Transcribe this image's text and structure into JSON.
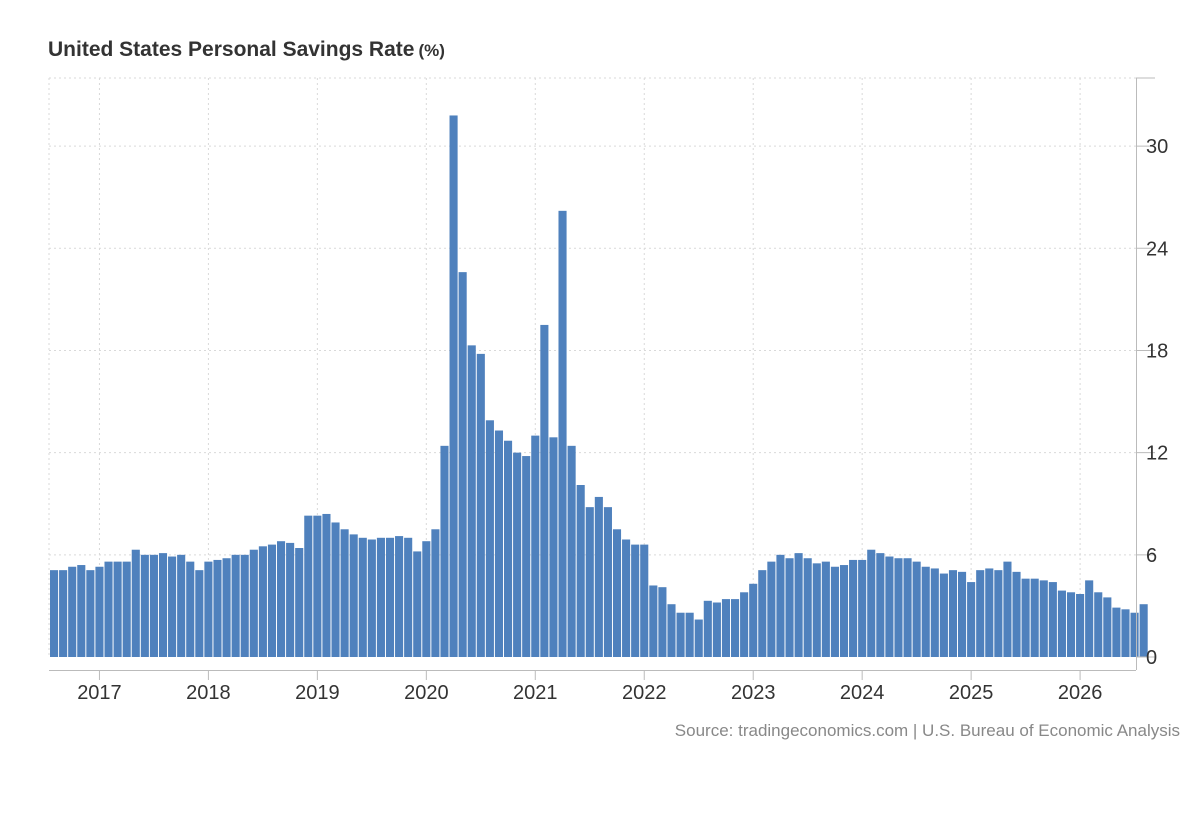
{
  "chart_data": {
    "type": "bar",
    "title": "United States Personal Savings Rate",
    "unit": "(%)",
    "source": "Source: tradingeconomics.com | U.S. Bureau of Economic Analysis",
    "xlabel": "",
    "ylabel": "",
    "start_month": "2016-08",
    "x_ticks": [
      "2017",
      "2018",
      "2019",
      "2020",
      "2021",
      "2022",
      "2023",
      "2024",
      "2025",
      "2026"
    ],
    "y_ticks": [
      0,
      6,
      12,
      18,
      24,
      30
    ],
    "ylim": [
      0,
      34
    ],
    "grid": true,
    "series_color": "#4f81bd",
    "values": [
      5.1,
      5.1,
      5.3,
      5.4,
      5.1,
      5.3,
      5.6,
      5.6,
      5.6,
      6.3,
      6.0,
      6.0,
      6.1,
      5.9,
      6.0,
      5.6,
      5.1,
      5.6,
      5.7,
      5.8,
      6.0,
      6.0,
      6.3,
      6.5,
      6.6,
      6.8,
      6.7,
      6.4,
      8.3,
      8.3,
      8.4,
      7.9,
      7.5,
      7.2,
      7.0,
      6.9,
      7.0,
      7.0,
      7.1,
      7.0,
      6.2,
      6.8,
      7.5,
      12.4,
      31.8,
      22.6,
      18.3,
      17.8,
      13.9,
      13.3,
      12.7,
      12.0,
      11.8,
      13.0,
      19.5,
      12.9,
      26.2,
      12.4,
      10.1,
      8.8,
      9.4,
      8.8,
      7.5,
      6.9,
      6.6,
      6.6,
      4.2,
      4.1,
      3.1,
      2.6,
      2.6,
      2.2,
      3.3,
      3.2,
      3.4,
      3.4,
      3.8,
      4.3,
      5.1,
      5.6,
      6.0,
      5.8,
      6.1,
      5.8,
      5.5,
      5.6,
      5.3,
      5.4,
      5.7,
      5.7,
      6.3,
      6.1,
      5.9,
      5.8,
      5.8,
      5.6,
      5.3,
      5.2,
      4.9,
      5.1,
      5.0,
      4.4,
      5.1,
      5.2,
      5.1,
      5.6,
      5.0,
      4.6,
      4.6,
      4.5,
      4.4,
      3.9,
      3.8,
      3.7,
      4.5,
      3.8,
      3.5,
      2.9,
      2.8,
      2.6,
      3.1
    ]
  }
}
